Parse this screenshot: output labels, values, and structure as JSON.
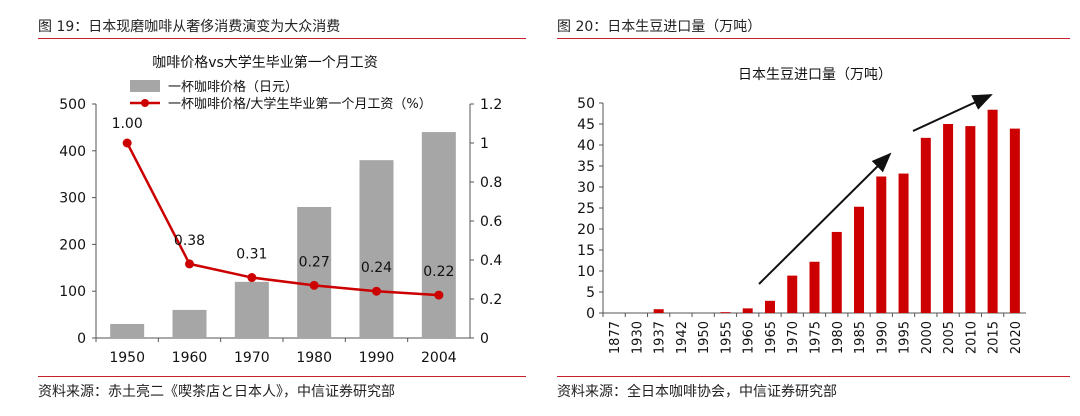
{
  "left_panel": {
    "figure_title": "图 19：日本现磨咖啡从奢侈消费演变为大众消费",
    "source": "资料来源：赤土亮二《喫茶店と日本人》，中信证券研究部"
  },
  "right_panel": {
    "figure_title": "图 20：日本生豆进口量（万吨）",
    "source": "资料来源：全日本咖啡协会，中信证券研究部"
  },
  "chart_data": [
    {
      "type": "bar+line",
      "title": "咖啡价格vs大学生毕业第一个月工资",
      "categories": [
        "1950",
        "1960",
        "1970",
        "1980",
        "1990",
        "2004"
      ],
      "series": [
        {
          "name": "一杯咖啡价格（日元）",
          "type": "bar",
          "axis": "left",
          "values": [
            30,
            60,
            120,
            280,
            380,
            440
          ],
          "color": "#a6a6a6"
        },
        {
          "name": "一杯咖啡价格/大学生毕业第一个月工资（%）",
          "type": "line",
          "axis": "right",
          "values": [
            1.0,
            0.38,
            0.31,
            0.27,
            0.24,
            0.22
          ],
          "color": "#cc0000",
          "labels": [
            "1.00",
            "0.38",
            "0.31",
            "0.27",
            "0.24",
            "0.22"
          ]
        }
      ],
      "y_left": {
        "ylim": [
          0,
          500
        ],
        "ticks": [
          "0",
          "100",
          "200",
          "300",
          "400",
          "500"
        ]
      },
      "y_right": {
        "ylim": [
          0,
          1.2
        ],
        "ticks": [
          "0",
          "0.2",
          "0.4",
          "0.6",
          "0.8",
          "1",
          "1.2"
        ]
      },
      "legend_position": "top"
    },
    {
      "type": "bar",
      "title": "日本生豆进口量（万吨）",
      "categories": [
        "1877",
        "1930",
        "1937",
        "1942",
        "1950",
        "1955",
        "1960",
        "1965",
        "1970",
        "1975",
        "1980",
        "1985",
        "1990",
        "1995",
        "2000",
        "2005",
        "2010",
        "2015",
        "2020"
      ],
      "values": [
        0,
        0,
        0.9,
        0,
        0,
        0.2,
        1.1,
        2.9,
        8.9,
        12.2,
        19.3,
        25.3,
        32.5,
        33.2,
        41.7,
        45.0,
        44.5,
        48.4,
        43.9
      ],
      "color": "#cc0000",
      "ylim": [
        0,
        50
      ],
      "ticks": [
        "0",
        "5",
        "10",
        "15",
        "20",
        "25",
        "30",
        "35",
        "40",
        "45",
        "50"
      ],
      "annotations": [
        "arrow-trend-1",
        "arrow-trend-2"
      ]
    }
  ]
}
